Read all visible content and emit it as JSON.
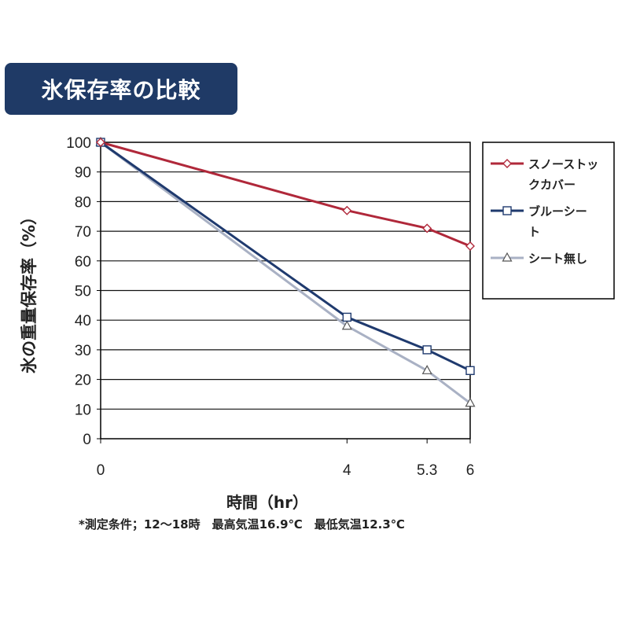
{
  "chart_data": {
    "type": "line",
    "title": "氷保存率の比較",
    "xlabel": "時間（hr）",
    "ylabel": "氷の重量保存率（%）",
    "x": [
      0,
      4,
      5.3,
      6
    ],
    "x_tick_labels": [
      "0",
      "4",
      "5.3",
      "6"
    ],
    "ylim": [
      0,
      100
    ],
    "y_ticks": [
      0,
      10,
      20,
      30,
      40,
      50,
      60,
      70,
      80,
      90,
      100
    ],
    "grid": true,
    "legend_position": "right",
    "series": [
      {
        "name": "スノーストックカバー",
        "name_lines": [
          "スノーストッ",
          "クカバー"
        ],
        "marker": "diamond",
        "color": "#b0283a",
        "values": [
          100,
          77,
          71,
          65
        ]
      },
      {
        "name": "ブルーシート",
        "name_lines": [
          "ブルーシー",
          "ト"
        ],
        "marker": "square",
        "color": "#1f3a6e",
        "values": [
          100,
          41,
          30,
          23
        ]
      },
      {
        "name": "シート無し",
        "name_lines": [
          "シート無し"
        ],
        "marker": "triangle",
        "color": "#a9b1c4",
        "values": [
          100,
          38,
          23,
          12
        ]
      }
    ],
    "footnote": "*測定条件；12～18時　最高気温16.9℃　最低気温12.3℃"
  }
}
